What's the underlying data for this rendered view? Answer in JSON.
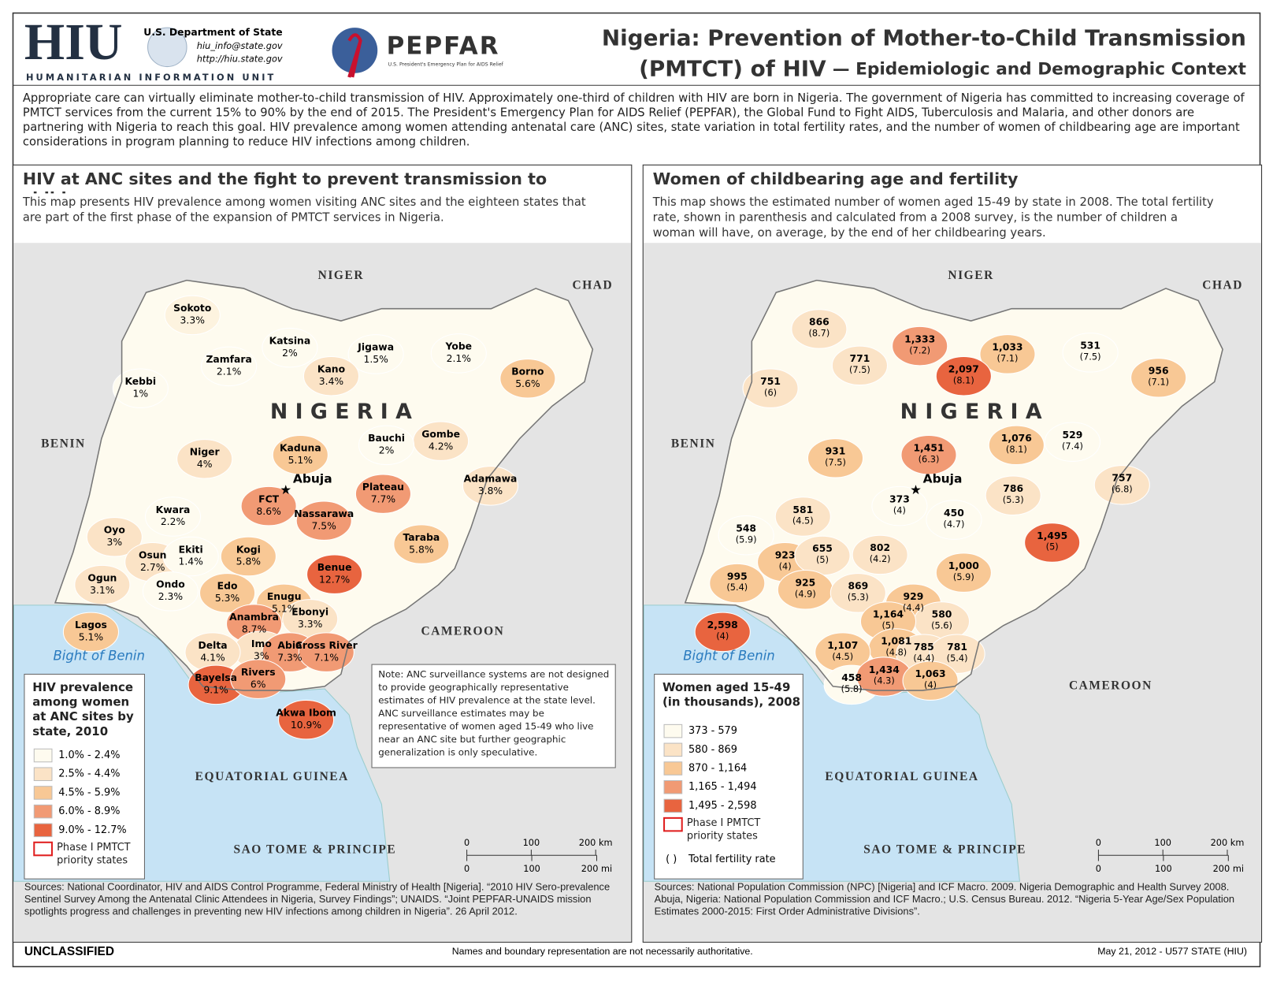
{
  "header": {
    "org_abbr": "HIU",
    "org_name": "HUMANITARIAN INFORMATION UNIT",
    "dept": "U.S. Department of State",
    "email": "hiu_info@state.gov",
    "url": "http://hiu.state.gov",
    "pepfar": "PEPFAR",
    "pepfar_sub": "U.S. President's Emergency Plan for AIDS Relief",
    "title_line1": "Nigeria: Prevention of Mother-to-Child Transmission",
    "title_line2": "(PMTCT) of HIV",
    "title_sub": "— Epidemiologic and Demographic Context"
  },
  "intro": "Appropriate care can virtually eliminate mother-to-child transmission of HIV. Approximately one-third of children with HIV are born in Nigeria. The government of Nigeria has committed to increasing coverage of PMTCT services from the current 15% to 90% by the end of 2015. The President's Emergency Plan for AIDS Relief (PEPFAR), the Global Fund to Fight AIDS, Tuberculosis and Malaria, and other donors are partnering with Nigeria to reach this goal. HIV prevalence among women attending antenatal care (ANC) sites, state variation in total fertility rates, and the number of women of childbearing age are important considerations in program planning to reduce HIV infections among children.",
  "left_map": {
    "title": "HIV at ANC sites and the fight to prevent transmission to children",
    "description": "This map presents HIV prevalence among women visiting ANC sites and the eighteen states that are part of the first phase of the expansion of PMTCT services in Nigeria.",
    "places": {
      "niger": "NIGER",
      "chad": "CHAD",
      "benin": "BENIN",
      "cameroon": "CAMEROON",
      "nigeria": "N I G E R I A",
      "abuja": "Abuja",
      "bight": "Bight of Benin",
      "eq_guinea": "EQUATORIAL GUINEA",
      "sao_tome": "SAO TOME & PRINCIPE"
    },
    "states": [
      {
        "name": "Sokoto",
        "value": "3.3%",
        "color": "#fdf3df"
      },
      {
        "name": "Katsina",
        "value": "2%",
        "color": "#fefbef"
      },
      {
        "name": "Zamfara",
        "value": "2.1%",
        "color": "#fefbef"
      },
      {
        "name": "Jigawa",
        "value": "1.5%",
        "color": "#fefbef"
      },
      {
        "name": "Kano",
        "value": "3.4%",
        "color": "#fbe3c6"
      },
      {
        "name": "Yobe",
        "value": "2.1%",
        "color": "#fefbef"
      },
      {
        "name": "Borno",
        "value": "5.6%",
        "color": "#f8c895"
      },
      {
        "name": "Kebbi",
        "value": "1%",
        "color": "#fefbef"
      },
      {
        "name": "Gombe",
        "value": "4.2%",
        "color": "#fbe3c6"
      },
      {
        "name": "Bauchi",
        "value": "2%",
        "color": "#fefbef"
      },
      {
        "name": "Kaduna",
        "value": "5.1%",
        "color": "#f8c895"
      },
      {
        "name": "Niger",
        "value": "4%",
        "color": "#fbe3c6"
      },
      {
        "name": "Adamawa",
        "value": "3.8%",
        "color": "#fbe3c6"
      },
      {
        "name": "FCT",
        "value": "8.6%",
        "color": "#f19a74"
      },
      {
        "name": "Plateau",
        "value": "7.7%",
        "color": "#f19a74"
      },
      {
        "name": "Nassarawa",
        "value": "7.5%",
        "color": "#f19a74"
      },
      {
        "name": "Kwara",
        "value": "2.2%",
        "color": "#fefbef"
      },
      {
        "name": "Oyo",
        "value": "3%",
        "color": "#fbe3c6"
      },
      {
        "name": "Taraba",
        "value": "5.8%",
        "color": "#f8c895"
      },
      {
        "name": "Osun",
        "value": "2.7%",
        "color": "#fbe3c6"
      },
      {
        "name": "Ekiti",
        "value": "1.4%",
        "color": "#fefbef"
      },
      {
        "name": "Kogi",
        "value": "5.8%",
        "color": "#f8c895"
      },
      {
        "name": "Benue",
        "value": "12.7%",
        "color": "#e8643f"
      },
      {
        "name": "Ogun",
        "value": "3.1%",
        "color": "#fbe3c6"
      },
      {
        "name": "Ondo",
        "value": "2.3%",
        "color": "#fefbef"
      },
      {
        "name": "Edo",
        "value": "5.3%",
        "color": "#f8c895"
      },
      {
        "name": "Enugu",
        "value": "5.1%",
        "color": "#f8c895"
      },
      {
        "name": "Ebonyi",
        "value": "3.3%",
        "color": "#fbe3c6"
      },
      {
        "name": "Anambra",
        "value": "8.7%",
        "color": "#f19a74"
      },
      {
        "name": "Lagos",
        "value": "5.1%",
        "color": "#f8c895"
      },
      {
        "name": "Imo",
        "value": "3%",
        "color": "#fbe3c6"
      },
      {
        "name": "Abia",
        "value": "7.3%",
        "color": "#f19a74"
      },
      {
        "name": "Delta",
        "value": "4.1%",
        "color": "#fbe3c6"
      },
      {
        "name": "Cross River",
        "value": "7.1%",
        "color": "#f19a74"
      },
      {
        "name": "Bayelsa",
        "value": "9.1%",
        "color": "#e8643f"
      },
      {
        "name": "Rivers",
        "value": "6%",
        "color": "#f19a74"
      },
      {
        "name": "Akwa Ibom",
        "value": "10.9%",
        "color": "#e8643f"
      }
    ],
    "legend": {
      "title": "HIV prevalence among women at ANC sites by state, 2010",
      "items": [
        {
          "label": "1.0% - 2.4%",
          "color": "#fefbef"
        },
        {
          "label": "2.5% - 4.4%",
          "color": "#fbe3c6"
        },
        {
          "label": "4.5% - 5.9%",
          "color": "#f8c895"
        },
        {
          "label": "6.0% - 8.9%",
          "color": "#f19a74"
        },
        {
          "label": "9.0% - 12.7%",
          "color": "#e8643f"
        }
      ],
      "phase": "Phase I PMTCT priority states"
    },
    "note": "Note: ANC surveillance systems are not designed to provide geographically representative estimates of HIV prevalence at the state level. ANC surveillance estimates may be representative of women aged 15-49 who live near an ANC site but further geographic generalization is only speculative.",
    "scale": {
      "km": [
        "0",
        "100",
        "200 km"
      ],
      "mi": [
        "0",
        "100",
        "200 mi"
      ]
    },
    "sources": "Sources: National Coordinator, HIV and AIDS Control Programme, Federal Ministry of Health [Nigeria]. “2010 HIV Sero-prevalence Sentinel Survey Among the Antenatal Clinic Attendees in Nigeria, Survey Findings”; UNAIDS. “Joint PEPFAR-UNAIDS mission spotlights progress and challenges in preventing new HIV infections among children in Nigeria”. 26 April 2012."
  },
  "right_map": {
    "title": "Women of childbearing age and fertility",
    "description": "This map shows the estimated number of women aged 15-49 by state in 2008. The total fertility rate, shown in parenthesis and calculated from a 2008 survey, is the number of children a woman will have, on average, by the end of her childbearing years.",
    "places": {
      "niger": "NIGER",
      "chad": "CHAD",
      "benin": "BENIN",
      "cameroon": "CAMEROON",
      "nigeria": "N I G E R I A",
      "abuja": "Abuja",
      "bight": "Bight of Benin",
      "eq_guinea": "EQUATORIAL GUINEA",
      "sao_tome": "SAO TOME & PRINCIPE"
    },
    "states": [
      {
        "value": "866",
        "fertility": "(8.7)",
        "color": "#fbe3c6"
      },
      {
        "value": "1,333",
        "fertility": "(7.2)",
        "color": "#f19a74"
      },
      {
        "value": "771",
        "fertility": "(7.5)",
        "color": "#fbe3c6"
      },
      {
        "value": "1,033",
        "fertility": "(7.1)",
        "color": "#f8c895"
      },
      {
        "value": "2,097",
        "fertility": "(8.1)",
        "color": "#e8643f"
      },
      {
        "value": "531",
        "fertility": "(7.5)",
        "color": "#fefbef"
      },
      {
        "value": "956",
        "fertility": "(7.1)",
        "color": "#f8c895"
      },
      {
        "value": "751",
        "fertility": "(6)",
        "color": "#fbe3c6"
      },
      {
        "value": "1,076",
        "fertility": "(8.1)",
        "color": "#f8c895"
      },
      {
        "value": "529",
        "fertility": "(7.4)",
        "color": "#fefbef"
      },
      {
        "value": "1,451",
        "fertility": "(6.3)",
        "color": "#f19a74"
      },
      {
        "value": "931",
        "fertility": "(7.5)",
        "color": "#f8c895"
      },
      {
        "value": "757",
        "fertility": "(6.8)",
        "color": "#fbe3c6"
      },
      {
        "value": "373",
        "fertility": "(4)",
        "color": "#fefbef"
      },
      {
        "value": "786",
        "fertility": "(5.3)",
        "color": "#fbe3c6"
      },
      {
        "value": "450",
        "fertility": "(4.7)",
        "color": "#fefbef"
      },
      {
        "value": "581",
        "fertility": "(4.5)",
        "color": "#fbe3c6"
      },
      {
        "value": "1,495",
        "fertility": "(5)",
        "color": "#e8643f"
      },
      {
        "value": "548",
        "fertility": "(5.9)",
        "color": "#fefbef"
      },
      {
        "value": "923",
        "fertility": "(4)",
        "color": "#f8c895"
      },
      {
        "value": "655",
        "fertility": "(5)",
        "color": "#fbe3c6"
      },
      {
        "value": "802",
        "fertility": "(4.2)",
        "color": "#fbe3c6"
      },
      {
        "value": "1,000",
        "fertility": "(5.9)",
        "color": "#f8c895"
      },
      {
        "value": "995",
        "fertility": "(5.4)",
        "color": "#f8c895"
      },
      {
        "value": "925",
        "fertility": "(4.9)",
        "color": "#f8c895"
      },
      {
        "value": "869",
        "fertility": "(5.3)",
        "color": "#fbe3c6"
      },
      {
        "value": "929",
        "fertility": "(4.4)",
        "color": "#f8c895"
      },
      {
        "value": "580",
        "fertility": "(5.6)",
        "color": "#fbe3c6"
      },
      {
        "value": "1,164",
        "fertility": "(5)",
        "color": "#f8c895"
      },
      {
        "value": "2,598",
        "fertility": "(4)",
        "color": "#e8643f"
      },
      {
        "value": "1,081",
        "fertility": "(4.8)",
        "color": "#f8c895"
      },
      {
        "value": "785",
        "fertility": "(4.4)",
        "color": "#fbe3c6"
      },
      {
        "value": "1,107",
        "fertility": "(4.5)",
        "color": "#f8c895"
      },
      {
        "value": "781",
        "fertility": "(5.4)",
        "color": "#fbe3c6"
      },
      {
        "value": "458",
        "fertility": "(5.8)",
        "color": "#fefbef"
      },
      {
        "value": "1,434",
        "fertility": "(4.3)",
        "color": "#f19a74"
      },
      {
        "value": "1,063",
        "fertility": "(4)",
        "color": "#f8c895"
      }
    ],
    "legend": {
      "title": "Women aged 15-49 (in thousands), 2008",
      "items": [
        {
          "label": "373 - 579",
          "color": "#fefbef"
        },
        {
          "label": "580 - 869",
          "color": "#fbe3c6"
        },
        {
          "label": "870 - 1,164",
          "color": "#f8c895"
        },
        {
          "label": "1,165 - 1,494",
          "color": "#f19a74"
        },
        {
          "label": "1,495 - 2,598",
          "color": "#e8643f"
        }
      ],
      "phase": "Phase I PMTCT priority states",
      "paren": "( )",
      "fertility_label": "Total fertility rate"
    },
    "scale": {
      "km": [
        "0",
        "100",
        "200 km"
      ],
      "mi": [
        "0",
        "100",
        "200 mi"
      ]
    },
    "sources": "Sources: National Population Commission (NPC) [Nigeria] and ICF Macro. 2009. Nigeria Demographic and Health Survey 2008. Abuja, Nigeria: National Population Commission and ICF Macro.; U.S. Census Bureau. 2012. “Nigeria 5-Year Age/Sex Population Estimates 2000-2015: First Order Administrative Divisions”."
  },
  "footer": {
    "classification": "UNCLASSIFIED",
    "disclaimer": "Names and boundary representation are not necessarily authoritative.",
    "date": "May 21, 2012 - U577 STATE (HIU)"
  }
}
